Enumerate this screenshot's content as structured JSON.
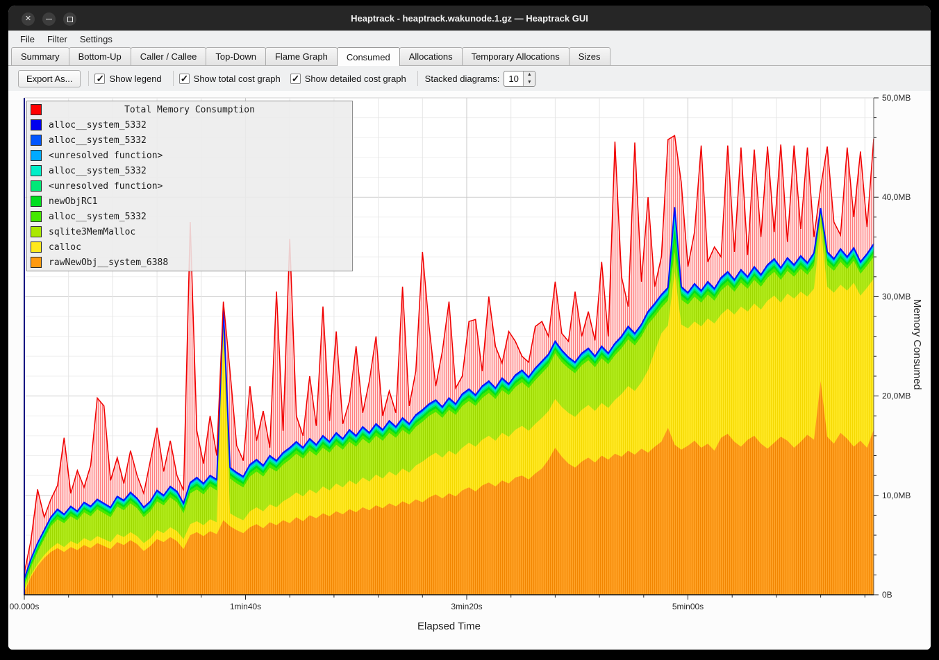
{
  "window": {
    "title": "Heaptrack - heaptrack.wakunode.1.gz — Heaptrack GUI",
    "buttons": [
      {
        "name": "close",
        "glyph": "✕"
      },
      {
        "name": "minimize",
        "glyph": "–"
      },
      {
        "name": "maximize",
        "glyph": "□"
      }
    ]
  },
  "menu": {
    "items": [
      "File",
      "Filter",
      "Settings"
    ]
  },
  "tabs": {
    "active_index": 5,
    "items": [
      "Summary",
      "Bottom-Up",
      "Caller / Callee",
      "Top-Down",
      "Flame Graph",
      "Consumed",
      "Allocations",
      "Temporary Allocations",
      "Sizes"
    ]
  },
  "toolbar": {
    "export_label": "Export As...",
    "checkboxes": [
      {
        "label": "Show legend",
        "checked": true
      },
      {
        "label": "Show total cost graph",
        "checked": true
      },
      {
        "label": "Show detailed cost graph",
        "checked": true
      }
    ],
    "stacked_label": "Stacked diagrams:",
    "stacked_value": "10"
  },
  "chart_data": {
    "type": "area",
    "title": "Total Memory Consumption",
    "xlabel": "Elapsed Time",
    "ylabel": "Memory Consumed",
    "xlim": [
      0,
      384
    ],
    "ylim": [
      0,
      50
    ],
    "x_start": 0,
    "x_step": 3,
    "x_ticks": [
      {
        "t": 0,
        "label": "00.000s"
      },
      {
        "t": 100,
        "label": "1min40s"
      },
      {
        "t": 200,
        "label": "3min20s"
      },
      {
        "t": 300,
        "label": "5min00s"
      }
    ],
    "x_minor_step": 20,
    "y_ticks": [
      {
        "v": 0,
        "label": "0B"
      },
      {
        "v": 10,
        "label": "10,0MB"
      },
      {
        "v": 20,
        "label": "20,0MB"
      },
      {
        "v": 30,
        "label": "30,0MB"
      },
      {
        "v": 40,
        "label": "40,0MB"
      },
      {
        "v": 50,
        "label": "50,0MB"
      }
    ],
    "y_minor_step": 2,
    "grid": true,
    "legend_position": "top-left",
    "legend": [
      {
        "label": "Total Memory Consumption",
        "color": "#ff0000",
        "title": true
      },
      {
        "label": "alloc__system_5332",
        "color": "#0000ee"
      },
      {
        "label": "alloc__system_5332",
        "color": "#0055ff"
      },
      {
        "label": "<unresolved function>",
        "color": "#00aaff"
      },
      {
        "label": "alloc__system_5332",
        "color": "#00eec8"
      },
      {
        "label": "<unresolved function>",
        "color": "#00e878"
      },
      {
        "label": "newObjRC1",
        "color": "#00dd1e"
      },
      {
        "label": "alloc__system_5332",
        "color": "#44e800"
      },
      {
        "label": "sqlite3MemMalloc",
        "color": "#aae800"
      },
      {
        "label": "calloc",
        "color": "#ffe81e"
      },
      {
        "label": "rawNewObj__system_6388",
        "color": "#ff9a10"
      }
    ],
    "total": {
      "name": "Total Memory Consumption",
      "line_color": "#f00000",
      "fill_base": "#ffdcdc",
      "fill_stripe": "#ff7d7d",
      "values": [
        2.2,
        5.5,
        10.6,
        7.8,
        9.6,
        11.0,
        15.8,
        10.2,
        12.5,
        10.8,
        13.0,
        19.8,
        19.0,
        11.5,
        13.8,
        11.2,
        14.5,
        12.0,
        10.2,
        13.5,
        16.8,
        12.4,
        15.5,
        12.0,
        10.5,
        37.5,
        16.5,
        13.2,
        18.0,
        14.0,
        29.5,
        22.5,
        15.0,
        13.5,
        21.0,
        15.5,
        18.5,
        14.8,
        30.5,
        16.5,
        35.8,
        18.0,
        16.0,
        22.0,
        17.0,
        29.0,
        17.5,
        26.5,
        17.2,
        19.5,
        25.0,
        18.3,
        21.5,
        26.0,
        18.0,
        20.5,
        18.3,
        31.0,
        19.0,
        22.5,
        34.5,
        27.0,
        21.0,
        24.5,
        29.5,
        20.8,
        22.0,
        27.5,
        27.7,
        22.5,
        30.0,
        25.0,
        23.3,
        26.5,
        25.5,
        24.0,
        23.4,
        27.0,
        27.5,
        26.0,
        31.5,
        26.3,
        25.5,
        30.5,
        26.0,
        28.5,
        25.6,
        33.5,
        26.0,
        45.6,
        32.0,
        29.0,
        45.5,
        31.5,
        40.0,
        31.0,
        34.0,
        45.8,
        46.2,
        41.5,
        33.0,
        36.5,
        45.2,
        33.5,
        35.0,
        34.0,
        45.2,
        34.5,
        45.0,
        34.2,
        44.8,
        36.0,
        45.1,
        36.5,
        45.3,
        35.5,
        45.2,
        36.8,
        45.0,
        36.0,
        41.0,
        45.1,
        37.5,
        36.2,
        45.0,
        38.0,
        44.6,
        37.0,
        45.9
      ]
    },
    "stacked_cumulative": [
      {
        "name": "rawNewObj__system_6388",
        "color": "#ffa226",
        "stripe": "#f28500",
        "cum": [
          0.3,
          1.8,
          2.9,
          3.7,
          4.3,
          4.7,
          4.3,
          4.8,
          4.5,
          5.0,
          4.7,
          5.2,
          4.9,
          4.6,
          5.3,
          5.0,
          5.5,
          5.1,
          4.4,
          4.9,
          5.6,
          5.3,
          5.8,
          5.4,
          4.6,
          6.0,
          6.3,
          5.9,
          6.4,
          6.1,
          7.5,
          6.9,
          6.5,
          6.2,
          6.8,
          7.1,
          6.7,
          7.3,
          7.0,
          7.5,
          7.2,
          7.8,
          7.4,
          8.0,
          7.7,
          8.2,
          7.9,
          8.4,
          8.1,
          8.6,
          8.3,
          8.8,
          8.5,
          9.0,
          8.7,
          9.2,
          8.9,
          9.4,
          9.1,
          9.6,
          9.3,
          9.8,
          10.1,
          9.7,
          10.2,
          9.9,
          10.5,
          10.8,
          10.4,
          11.0,
          11.3,
          10.9,
          11.5,
          11.2,
          11.8,
          12.0,
          11.6,
          12.2,
          12.7,
          13.6,
          14.8,
          13.9,
          13.2,
          12.8,
          13.4,
          13.8,
          13.3,
          14.0,
          13.6,
          14.2,
          13.9,
          14.5,
          14.1,
          14.7,
          14.3,
          14.9,
          15.4,
          16.8,
          15.1,
          14.6,
          15.0,
          15.5,
          14.8,
          15.2,
          14.5,
          15.8,
          16.2,
          15.4,
          14.9,
          15.6,
          16.0,
          15.2,
          14.7,
          15.3,
          15.9,
          15.5,
          14.8,
          15.4,
          16.1,
          15.6,
          21.5,
          15.9,
          15.2,
          16.3,
          15.7,
          14.9,
          15.5,
          14.8,
          16.6
        ]
      },
      {
        "name": "calloc",
        "color": "#ffe926",
        "stripe": "#f5d800",
        "cum": [
          0.5,
          2.0,
          3.1,
          4.0,
          4.7,
          5.2,
          4.8,
          5.4,
          5.1,
          5.7,
          5.4,
          5.9,
          5.6,
          5.3,
          6.1,
          5.8,
          6.3,
          5.9,
          5.2,
          5.7,
          6.5,
          6.2,
          6.8,
          6.4,
          5.6,
          7.1,
          7.4,
          7.0,
          7.6,
          7.3,
          26.5,
          8.2,
          7.8,
          7.5,
          8.4,
          8.8,
          8.4,
          9.1,
          8.8,
          9.4,
          9.8,
          10.3,
          9.9,
          10.6,
          10.2,
          10.9,
          10.5,
          11.2,
          10.8,
          11.5,
          11.1,
          11.8,
          11.4,
          12.1,
          11.7,
          12.4,
          12.0,
          12.7,
          12.3,
          13.0,
          13.4,
          13.9,
          14.3,
          13.8,
          14.5,
          14.1,
          14.8,
          15.3,
          14.9,
          15.6,
          16.0,
          15.5,
          16.3,
          15.9,
          16.6,
          17.0,
          16.5,
          17.2,
          17.8,
          18.5,
          19.7,
          18.9,
          18.3,
          17.9,
          18.6,
          19.1,
          18.5,
          19.3,
          18.8,
          19.6,
          20.2,
          21.0,
          20.5,
          21.4,
          22.6,
          24.5,
          26.3,
          27.1,
          32.5,
          27.2,
          26.8,
          27.5,
          27.0,
          27.8,
          27.3,
          28.2,
          28.8,
          28.2,
          29.0,
          28.5,
          29.3,
          28.7,
          29.6,
          30.1,
          29.4,
          30.3,
          29.8,
          30.5,
          30.0,
          30.8,
          37.0,
          31.0,
          30.4,
          31.2,
          30.6,
          31.4,
          30.1,
          30.9,
          31.8
        ]
      },
      {
        "name": "sqlite3MemMalloc",
        "color": "#b2ec1c",
        "stripe": "#9fd800",
        "cum": [
          0.9,
          2.8,
          4.3,
          5.6,
          6.9,
          7.6,
          7.2,
          7.9,
          7.5,
          8.3,
          7.9,
          8.6,
          8.2,
          7.8,
          8.9,
          8.5,
          9.2,
          8.7,
          7.8,
          8.4,
          9.4,
          9.0,
          9.8,
          9.3,
          8.2,
          10.2,
          10.6,
          10.1,
          10.9,
          10.5,
          27.8,
          11.7,
          11.2,
          10.8,
          11.9,
          12.4,
          11.9,
          12.8,
          12.4,
          13.1,
          13.6,
          14.2,
          13.7,
          14.5,
          14.0,
          14.8,
          14.3,
          15.1,
          14.6,
          15.4,
          14.9,
          15.7,
          15.2,
          16.0,
          15.5,
          16.3,
          15.8,
          16.6,
          16.1,
          16.9,
          17.4,
          18.0,
          18.4,
          17.8,
          18.6,
          18.1,
          19.0,
          19.5,
          19.0,
          19.8,
          20.3,
          19.7,
          20.6,
          20.1,
          20.9,
          21.4,
          20.8,
          21.6,
          22.3,
          23.0,
          24.3,
          23.4,
          22.8,
          22.3,
          23.1,
          23.6,
          22.9,
          23.8,
          23.2,
          24.1,
          24.8,
          25.7,
          25.1,
          26.0,
          27.2,
          28.0,
          28.9,
          29.6,
          34.5,
          29.7,
          29.2,
          30.0,
          29.4,
          30.2,
          29.6,
          30.6,
          31.2,
          30.5,
          31.4,
          30.8,
          31.7,
          31.0,
          31.9,
          32.5,
          31.7,
          32.6,
          32.0,
          32.8,
          32.2,
          33.1,
          38.2,
          33.2,
          32.6,
          33.5,
          32.8,
          33.6,
          32.3,
          33.1,
          34.0
        ]
      }
    ],
    "upper_bands": {
      "line_color": "#0014ff",
      "bands": [
        {
          "name": "alloc__system_5332",
          "color": "#44e800",
          "frac": 0.3
        },
        {
          "name": "newObjRC1",
          "color": "#00dd1e",
          "frac": 0.2
        },
        {
          "name": "<unresolved function>",
          "color": "#00e878",
          "frac": 0.15
        },
        {
          "name": "alloc__system_5332",
          "color": "#00e8c8",
          "frac": 0.13
        },
        {
          "name": "<unresolved function>",
          "color": "#00aaff",
          "frac": 0.1
        },
        {
          "name": "alloc__system_5332",
          "color": "#0055ff",
          "frac": 0.07
        },
        {
          "name": "alloc__system_5332",
          "color": "#0000ee",
          "frac": 0.05
        }
      ],
      "top_cum": [
        1.6,
        3.6,
        5.2,
        6.5,
        7.8,
        8.6,
        8.1,
        8.9,
        8.4,
        9.3,
        8.9,
        9.6,
        9.2,
        8.8,
        9.9,
        9.5,
        10.3,
        9.7,
        8.8,
        9.4,
        10.5,
        10.0,
        10.9,
        10.4,
        9.2,
        11.3,
        11.8,
        11.2,
        12.0,
        11.6,
        28.8,
        12.8,
        12.3,
        11.9,
        13.1,
        13.6,
        13.0,
        14.0,
        13.5,
        14.3,
        14.8,
        15.4,
        14.8,
        15.7,
        15.1,
        16.0,
        15.4,
        16.3,
        15.7,
        16.6,
        16.0,
        16.9,
        16.3,
        17.2,
        16.6,
        17.5,
        16.9,
        17.8,
        17.2,
        18.1,
        18.6,
        19.2,
        19.6,
        18.9,
        19.8,
        19.2,
        20.2,
        20.7,
        20.1,
        21.0,
        21.5,
        20.8,
        21.8,
        21.2,
        22.1,
        22.6,
        21.9,
        22.8,
        23.5,
        24.2,
        25.5,
        24.6,
        23.9,
        23.4,
        24.3,
        24.8,
        24.0,
        25.0,
        24.3,
        25.3,
        26.0,
        27.0,
        26.3,
        27.2,
        28.5,
        29.3,
        30.2,
        30.9,
        39.0,
        31.0,
        30.4,
        31.3,
        30.6,
        31.5,
        30.8,
        31.9,
        32.5,
        31.7,
        32.7,
        32.0,
        33.0,
        32.2,
        33.2,
        33.8,
        32.9,
        33.9,
        33.2,
        34.1,
        33.4,
        34.4,
        38.9,
        34.5,
        33.8,
        34.8,
        34.0,
        34.9,
        33.5,
        34.3,
        35.3
      ]
    }
  }
}
